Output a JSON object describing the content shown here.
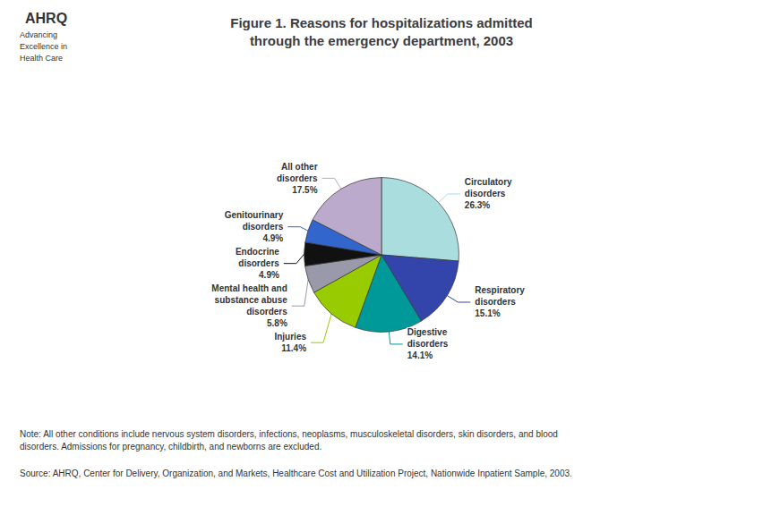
{
  "chart_data": {
    "type": "pie",
    "title": "Figure 1. Reasons for hospitalizations admitted\nthrough the emergency department, 2003",
    "categories": [
      "Circulatory\ndisorders",
      "Respiratory\ndisorders",
      "Digestive\ndisorders",
      "Injuries",
      "Mental health and\nsubstance abuse\ndisorders",
      "Endocrine\ndisorders",
      "Genitourinary\ndisorders",
      "All other\ndisorders"
    ],
    "values": [
      26.3,
      15.1,
      14.1,
      11.4,
      5.8,
      4.9,
      4.9,
      17.5
    ],
    "value_labels": [
      "26.3%",
      "15.1%",
      "14.1%",
      "11.4%",
      "5.8%",
      "4.9%",
      "4.9%",
      "17.5%"
    ],
    "colors": [
      "#AADDDD",
      "#3344AA",
      "#009999",
      "#99CC00",
      "#9999AA",
      "#111111",
      "#3366CC",
      "#BBAACC"
    ],
    "data_labels": true,
    "annotations": [
      "AHRQ",
      "Advancing\nExcellence in\nHealth Care",
      "Note: All other conditions include nervous system disorders, infections, neoplasms, musculoskeletal disorders, skin disorders, and blood\ndisorders. Admissions for pregnancy, childbirth, and newborns are excluded.",
      "Source: AHRQ, Center for Delivery, Organization, and Markets, Healthcare Cost and Utilization Project, Nationwide Inpatient Sample, 2003."
    ]
  }
}
